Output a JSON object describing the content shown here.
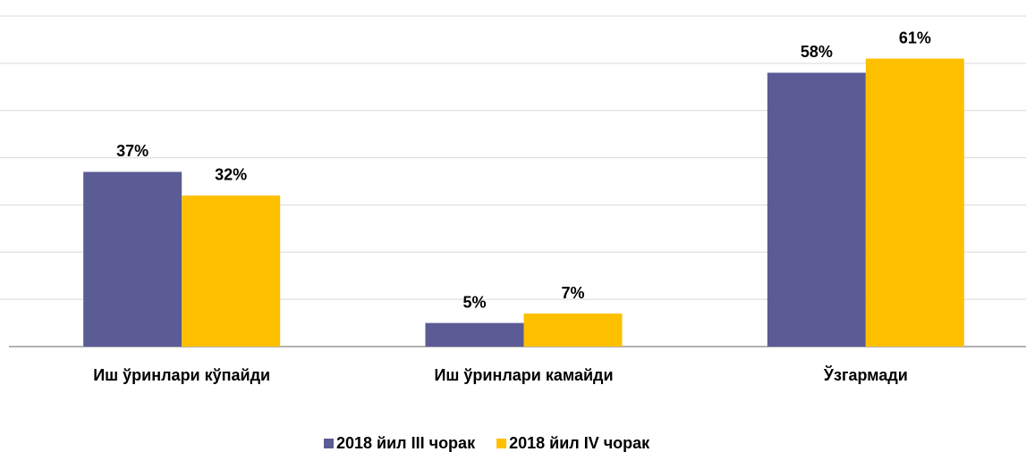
{
  "chart_data": {
    "type": "bar",
    "categories": [
      "Иш ўринлари кўпайди",
      "Иш ўринлари камайди",
      "Ўзгармади"
    ],
    "series": [
      {
        "name": "2018 йил III чорак",
        "color": "#5b5b96",
        "values": [
          37,
          5,
          58
        ],
        "value_labels": [
          "37%",
          "5%",
          "58%"
        ]
      },
      {
        "name": "2018 йил IV чорак",
        "color": "#ffc000",
        "values": [
          32,
          7,
          61
        ],
        "value_labels": [
          "32%",
          "7%",
          "61%"
        ]
      }
    ],
    "ylim": [
      0,
      70
    ],
    "yticks": [
      0,
      10,
      20,
      30,
      40,
      50,
      60,
      70
    ],
    "grid": true,
    "legend": "bottom"
  }
}
